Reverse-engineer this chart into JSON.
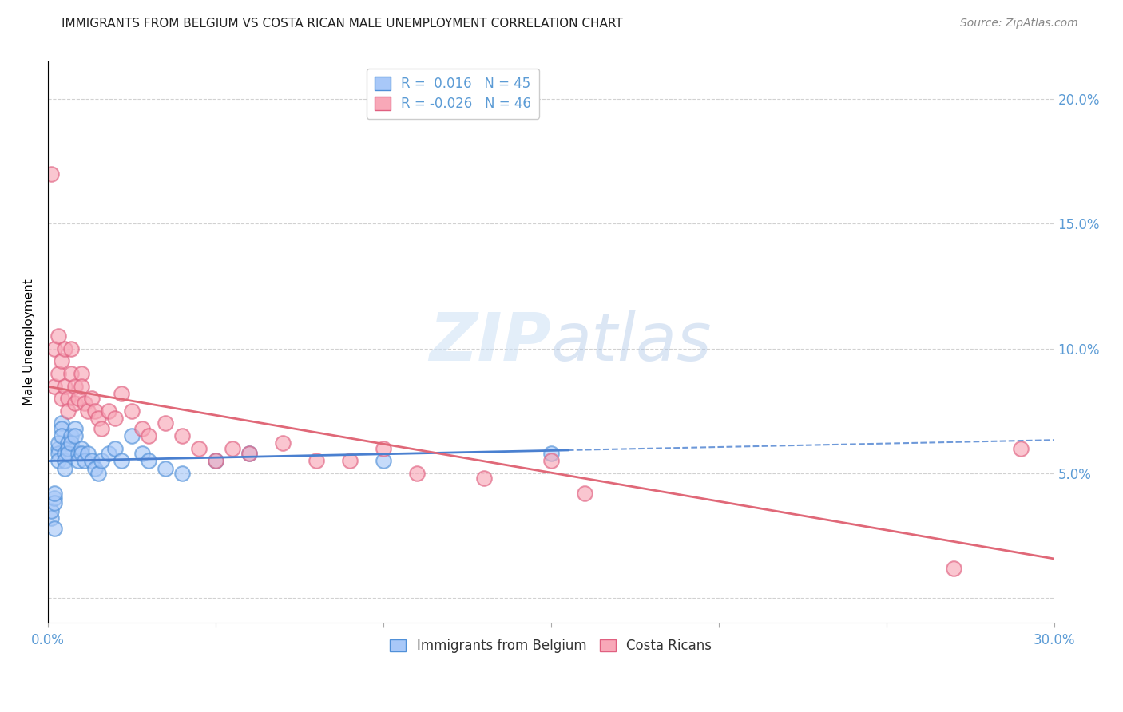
{
  "title": "IMMIGRANTS FROM BELGIUM VS COSTA RICAN MALE UNEMPLOYMENT CORRELATION CHART",
  "source": "Source: ZipAtlas.com",
  "ylabel": "Male Unemployment",
  "yticks": [
    0.0,
    0.05,
    0.1,
    0.15,
    0.2
  ],
  "ytick_labels": [
    "",
    "5.0%",
    "10.0%",
    "15.0%",
    "20.0%"
  ],
  "xlim": [
    0.0,
    0.3
  ],
  "ylim": [
    -0.01,
    0.215
  ],
  "legend_r_belgium": " 0.016",
  "legend_n_belgium": "45",
  "legend_r_costarica": "-0.026",
  "legend_n_costarica": "46",
  "color_belgium_fill": "#a8c8f8",
  "color_costarica_fill": "#f8a8b8",
  "color_belgium_edge": "#5090d8",
  "color_costarica_edge": "#e06080",
  "color_belgium_line": "#4a80d0",
  "color_costarica_line": "#e06878",
  "color_axis_text": "#5b9bd5",
  "background_color": "#ffffff",
  "belgium_x": [
    0.001,
    0.001,
    0.002,
    0.002,
    0.002,
    0.002,
    0.003,
    0.003,
    0.003,
    0.003,
    0.004,
    0.004,
    0.004,
    0.005,
    0.005,
    0.005,
    0.006,
    0.006,
    0.006,
    0.007,
    0.007,
    0.008,
    0.008,
    0.009,
    0.009,
    0.01,
    0.01,
    0.011,
    0.012,
    0.013,
    0.014,
    0.015,
    0.016,
    0.018,
    0.02,
    0.022,
    0.025,
    0.028,
    0.03,
    0.035,
    0.04,
    0.05,
    0.06,
    0.1,
    0.15
  ],
  "belgium_y": [
    0.032,
    0.035,
    0.028,
    0.04,
    0.038,
    0.042,
    0.06,
    0.058,
    0.055,
    0.062,
    0.07,
    0.068,
    0.065,
    0.058,
    0.055,
    0.052,
    0.062,
    0.06,
    0.058,
    0.065,
    0.062,
    0.068,
    0.065,
    0.058,
    0.055,
    0.06,
    0.058,
    0.055,
    0.058,
    0.055,
    0.052,
    0.05,
    0.055,
    0.058,
    0.06,
    0.055,
    0.065,
    0.058,
    0.055,
    0.052,
    0.05,
    0.055,
    0.058,
    0.055,
    0.058
  ],
  "costarica_x": [
    0.001,
    0.002,
    0.002,
    0.003,
    0.003,
    0.004,
    0.004,
    0.005,
    0.005,
    0.006,
    0.006,
    0.007,
    0.007,
    0.008,
    0.008,
    0.009,
    0.01,
    0.01,
    0.011,
    0.012,
    0.013,
    0.014,
    0.015,
    0.016,
    0.018,
    0.02,
    0.022,
    0.025,
    0.028,
    0.03,
    0.035,
    0.04,
    0.045,
    0.05,
    0.055,
    0.06,
    0.07,
    0.08,
    0.09,
    0.1,
    0.11,
    0.13,
    0.15,
    0.16,
    0.27,
    0.29
  ],
  "costarica_y": [
    0.17,
    0.1,
    0.085,
    0.105,
    0.09,
    0.095,
    0.08,
    0.1,
    0.085,
    0.08,
    0.075,
    0.1,
    0.09,
    0.085,
    0.078,
    0.08,
    0.09,
    0.085,
    0.078,
    0.075,
    0.08,
    0.075,
    0.072,
    0.068,
    0.075,
    0.072,
    0.082,
    0.075,
    0.068,
    0.065,
    0.07,
    0.065,
    0.06,
    0.055,
    0.06,
    0.058,
    0.062,
    0.055,
    0.055,
    0.06,
    0.05,
    0.048,
    0.055,
    0.042,
    0.012,
    0.06
  ]
}
